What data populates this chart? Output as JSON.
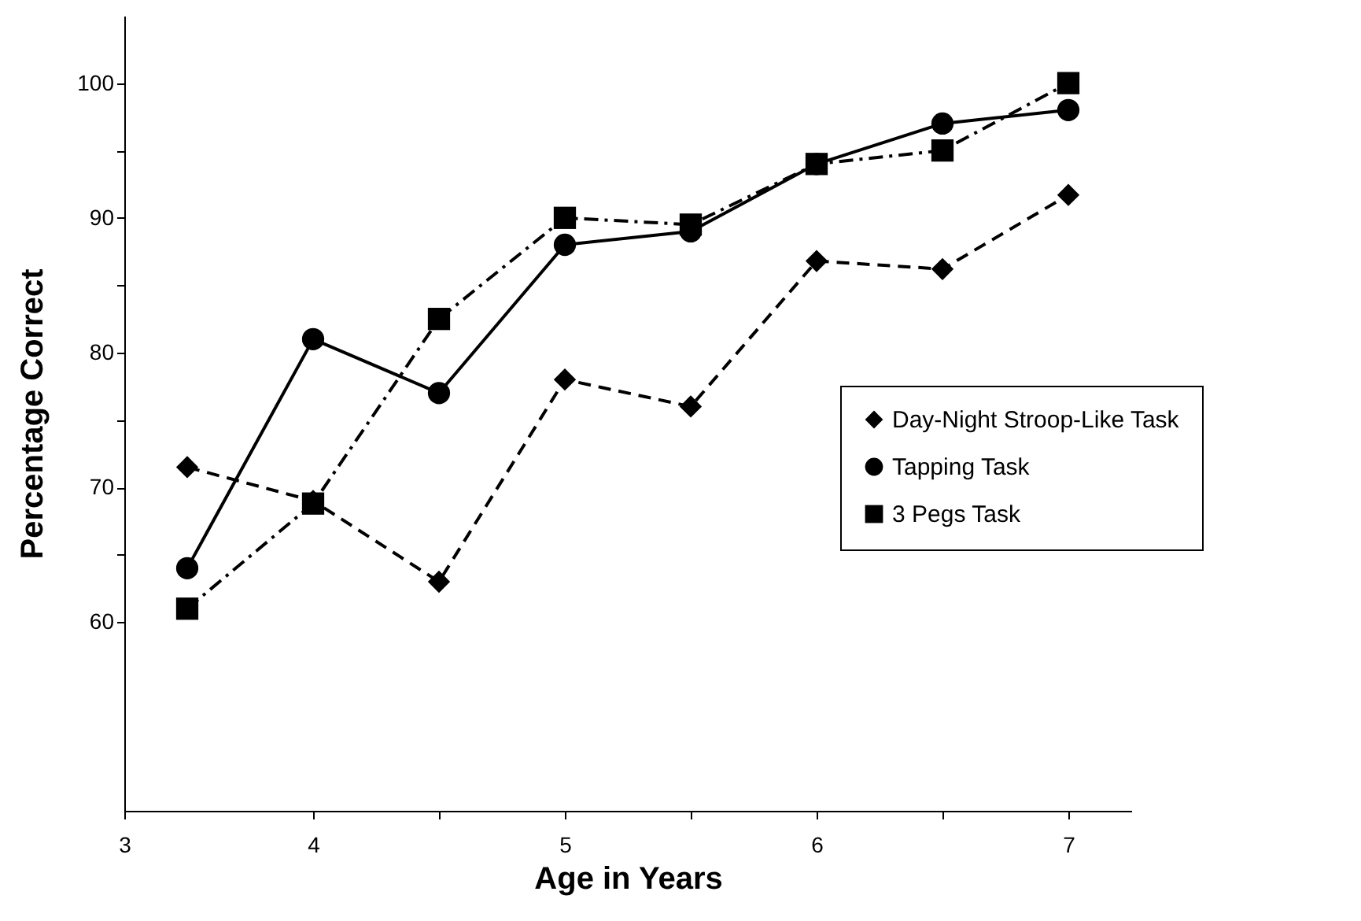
{
  "chart_data": {
    "type": "line",
    "xlabel": "Age in Years",
    "ylabel": "Percentage Correct",
    "x": [
      3.5,
      4,
      4.5,
      5,
      5.5,
      6,
      6.5,
      7
    ],
    "series": [
      {
        "name": "Day-Night Stroop-Like Task",
        "color": "#000000",
        "marker": "diamond",
        "line_style": "dashed",
        "values": [
          71.5,
          69,
          63,
          78,
          76,
          86.8,
          86.2,
          91.7
        ]
      },
      {
        "name": "Tapping Task",
        "color": "#000000",
        "marker": "circle",
        "line_style": "solid",
        "values": [
          64,
          81,
          77,
          88,
          89,
          94,
          97,
          98
        ]
      },
      {
        "name": "3 Pegs Task",
        "color": "#000000",
        "marker": "square",
        "line_style": "dashdot",
        "values": [
          61,
          68.8,
          82.5,
          90,
          89.5,
          94,
          95,
          100
        ]
      }
    ],
    "xlim": [
      3.25,
      7.25
    ],
    "xticks": [
      {
        "value": 3.25,
        "label": "3"
      },
      4,
      {
        "value": 4.5,
        "label": null
      },
      5,
      {
        "value": 5.5,
        "label": null
      },
      6,
      {
        "value": 6.5,
        "label": null
      },
      7
    ],
    "ylim": [
      46,
      105
    ],
    "yticks": [
      60,
      {
        "value": 65,
        "label": null
      },
      70,
      {
        "value": 75,
        "label": null
      },
      80,
      {
        "value": 85,
        "label": null
      },
      90,
      {
        "value": 95,
        "label": null
      },
      100
    ],
    "grid": false,
    "legend": "right"
  }
}
